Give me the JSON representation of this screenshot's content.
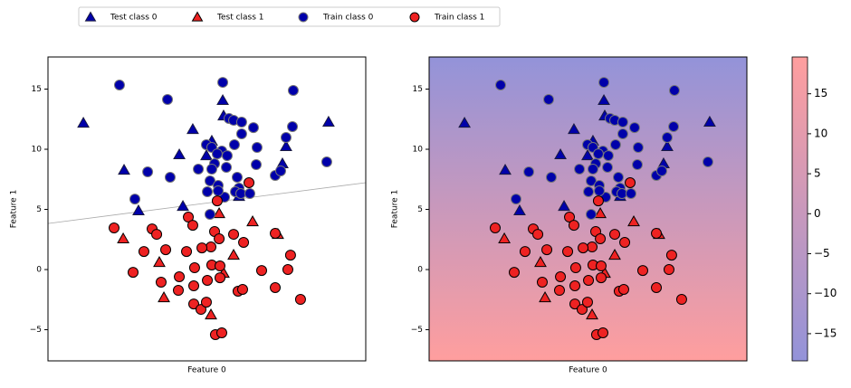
{
  "chart_data": {
    "type": "scatter",
    "xlim": [
      -13.2,
      13.2
    ],
    "ylim": [
      -7.59,
      17.67
    ],
    "yticks": [
      {
        "value": -5,
        "label": "−5"
      },
      0,
      5,
      10,
      15
    ],
    "series": [
      {
        "name": "Test class 0",
        "marker": "triangle",
        "color": "#0000aa",
        "edgecolor": "#1a1a40",
        "x": [
          -10.26,
          -6.88,
          -5.68,
          -2.29,
          -1.17,
          1.32,
          1.39,
          0.41,
          -0.04,
          2.67,
          -1.99,
          6.28,
          6.58,
          10.11
        ],
        "values": [
          12.18,
          8.27,
          4.89,
          9.55,
          11.65,
          14.06,
          12.78,
          10.68,
          9.47,
          6.09,
          5.26,
          8.8,
          10.23,
          12.26
        ]
      },
      {
        "name": "Test class 1",
        "marker": "triangle",
        "color": "#ee2222",
        "edgecolor": "#000000",
        "x": [
          -6.95,
          -3.95,
          -3.57,
          1.02,
          3.8,
          5.9,
          2.22,
          1.39,
          0.34
        ],
        "values": [
          2.56,
          0.6,
          -2.33,
          4.66,
          3.98,
          2.93,
          1.2,
          -0.3,
          -3.76
        ]
      },
      {
        "name": "Train class 0",
        "marker": "circle",
        "color": "#0000aa",
        "edgecolor": "#777777",
        "x": [
          -7.26,
          -3.27,
          1.32,
          7.18,
          -3.05,
          -4.92,
          -5.98,
          1.84,
          2.22,
          2.89,
          3.87,
          2.89,
          7.11,
          6.58,
          4.17,
          2.29,
          -0.04,
          0.41,
          1.24,
          1.69,
          0.86,
          0.64,
          -0.71,
          0.41,
          1.62,
          4.1,
          5.68,
          6.13,
          2.52,
          2.67,
          2.37,
          2.82,
          3.57,
          0.26,
          0.94,
          1.47,
          0.04,
          0.94,
          9.96,
          0.26
        ],
        "values": [
          15.34,
          14.14,
          15.56,
          14.89,
          7.67,
          8.12,
          5.86,
          12.56,
          12.41,
          12.26,
          11.8,
          11.28,
          11.88,
          10.98,
          10.15,
          10.38,
          10.38,
          10.15,
          9.85,
          9.47,
          9.62,
          8.8,
          8.35,
          8.35,
          8.5,
          8.72,
          7.82,
          8.2,
          7.67,
          6.77,
          6.47,
          6.32,
          6.32,
          7.37,
          6.99,
          6.02,
          6.47,
          6.54,
          8.95,
          4.59
        ]
      },
      {
        "name": "Train class 1",
        "marker": "circle",
        "color": "#ee2222",
        "edgecolor": "#000000",
        "x": [
          -7.71,
          -4.55,
          -4.17,
          -5.23,
          -3.42,
          -6.13,
          -1.54,
          -1.17,
          0.86,
          0.64,
          1.02,
          3.05,
          2.22,
          3.5,
          5.68,
          6.95,
          0.34,
          -0.41,
          -1.69,
          -1.02,
          0.41,
          1.09,
          4.55,
          6.73,
          -2.29,
          -3.8,
          -2.37,
          -1.09,
          0.04,
          1.09,
          5.68,
          7.78,
          -1.09,
          -0.49,
          -0.04,
          2.59,
          2.97,
          0.71,
          1.24
        ],
        "values": [
          3.46,
          3.38,
          2.93,
          1.5,
          1.65,
          -0.23,
          4.36,
          3.68,
          5.71,
          3.16,
          2.56,
          2.26,
          2.93,
          7.22,
          3.01,
          1.2,
          1.88,
          1.8,
          1.5,
          0.15,
          0.38,
          0.3,
          -0.08,
          0.0,
          -0.6,
          -1.05,
          -1.73,
          -1.35,
          -0.9,
          -0.68,
          -1.5,
          -2.48,
          -2.86,
          -3.31,
          -2.71,
          -1.8,
          -1.65,
          -5.41,
          -5.26
        ]
      }
    ],
    "panels": [
      {
        "xlabel": "Feature 0",
        "ylabel": "Feature 1",
        "decision_line": {
          "x": [
            -13.2,
            13.2
          ],
          "y": [
            3.83,
            7.22
          ],
          "color": "#aaaaaa"
        }
      },
      {
        "xlabel": "Feature 0",
        "ylabel": "Feature 1",
        "shading": {
          "colormap": [
            "#9393d9",
            "#ff9e9e"
          ],
          "clim": [
            -18.4,
            19.6
          ],
          "cticks": [
            {
              "value": -15,
              "label": "−15"
            },
            {
              "value": -10,
              "label": "−10"
            },
            {
              "value": -5,
              "label": "−5"
            },
            0,
            5,
            10,
            15
          ]
        }
      }
    ]
  }
}
